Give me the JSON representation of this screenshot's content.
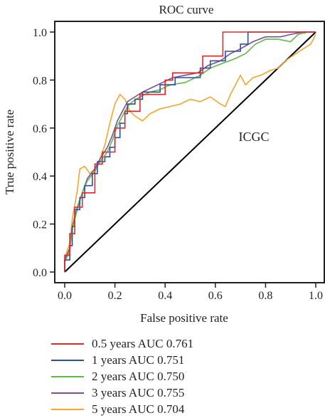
{
  "chart_data": {
    "type": "line",
    "title": "ROC curve",
    "xlabel": "False positive rate",
    "ylabel": "True positive rate",
    "xlim": [
      0,
      1.0
    ],
    "ylim": [
      0,
      1.0
    ],
    "x_ticks": [
      "0.0",
      "0.2",
      "0.4",
      "0.6",
      "0.8",
      "1.0"
    ],
    "y_ticks": [
      "0.0",
      "0.2",
      "0.4",
      "0.6",
      "0.8",
      "1.0"
    ],
    "annotation": "ICGC",
    "grid": false,
    "legend_position": "bottom",
    "diagonal_reference": true,
    "series": [
      {
        "name": "0.5 years AUC 0.761",
        "color": "#e4262a",
        "points": [
          [
            0.0,
            0.0
          ],
          [
            0.0,
            0.07
          ],
          [
            0.02,
            0.07
          ],
          [
            0.02,
            0.16
          ],
          [
            0.04,
            0.16
          ],
          [
            0.04,
            0.27
          ],
          [
            0.07,
            0.27
          ],
          [
            0.07,
            0.33
          ],
          [
            0.12,
            0.33
          ],
          [
            0.12,
            0.45
          ],
          [
            0.15,
            0.45
          ],
          [
            0.15,
            0.5
          ],
          [
            0.2,
            0.5
          ],
          [
            0.2,
            0.6
          ],
          [
            0.24,
            0.6
          ],
          [
            0.24,
            0.67
          ],
          [
            0.3,
            0.67
          ],
          [
            0.3,
            0.74
          ],
          [
            0.4,
            0.74
          ],
          [
            0.4,
            0.8
          ],
          [
            0.43,
            0.8
          ],
          [
            0.43,
            0.83
          ],
          [
            0.55,
            0.83
          ],
          [
            0.55,
            0.9
          ],
          [
            0.63,
            0.9
          ],
          [
            0.63,
            1.0
          ],
          [
            1.0,
            1.0
          ]
        ]
      },
      {
        "name": "1 years AUC 0.751",
        "color": "#2d4fa0",
        "points": [
          [
            0.0,
            0.0
          ],
          [
            0.0,
            0.05
          ],
          [
            0.02,
            0.05
          ],
          [
            0.02,
            0.11
          ],
          [
            0.03,
            0.11
          ],
          [
            0.03,
            0.19
          ],
          [
            0.04,
            0.19
          ],
          [
            0.04,
            0.26
          ],
          [
            0.06,
            0.26
          ],
          [
            0.06,
            0.31
          ],
          [
            0.08,
            0.31
          ],
          [
            0.08,
            0.36
          ],
          [
            0.11,
            0.36
          ],
          [
            0.11,
            0.41
          ],
          [
            0.13,
            0.41
          ],
          [
            0.13,
            0.46
          ],
          [
            0.16,
            0.46
          ],
          [
            0.16,
            0.48
          ],
          [
            0.18,
            0.48
          ],
          [
            0.18,
            0.52
          ],
          [
            0.2,
            0.52
          ],
          [
            0.2,
            0.56
          ],
          [
            0.22,
            0.56
          ],
          [
            0.22,
            0.62
          ],
          [
            0.24,
            0.62
          ],
          [
            0.24,
            0.66
          ],
          [
            0.25,
            0.66
          ],
          [
            0.25,
            0.7
          ],
          [
            0.28,
            0.7
          ],
          [
            0.28,
            0.72
          ],
          [
            0.31,
            0.72
          ],
          [
            0.31,
            0.75
          ],
          [
            0.38,
            0.75
          ],
          [
            0.38,
            0.78
          ],
          [
            0.44,
            0.78
          ],
          [
            0.44,
            0.81
          ],
          [
            0.54,
            0.81
          ],
          [
            0.54,
            0.85
          ],
          [
            0.58,
            0.85
          ],
          [
            0.58,
            0.88
          ],
          [
            0.64,
            0.88
          ],
          [
            0.64,
            0.92
          ],
          [
            0.7,
            0.92
          ],
          [
            0.7,
            0.95
          ],
          [
            0.73,
            0.95
          ],
          [
            0.73,
            1.0
          ],
          [
            1.0,
            1.0
          ]
        ]
      },
      {
        "name": "2 years AUC 0.750",
        "color": "#5cbd46",
        "points": [
          [
            0.0,
            0.0
          ],
          [
            0.0,
            0.04
          ],
          [
            0.02,
            0.09
          ],
          [
            0.03,
            0.18
          ],
          [
            0.05,
            0.26
          ],
          [
            0.07,
            0.33
          ],
          [
            0.09,
            0.38
          ],
          [
            0.12,
            0.42
          ],
          [
            0.14,
            0.46
          ],
          [
            0.17,
            0.5
          ],
          [
            0.19,
            0.55
          ],
          [
            0.21,
            0.61
          ],
          [
            0.23,
            0.65
          ],
          [
            0.25,
            0.69
          ],
          [
            0.27,
            0.71
          ],
          [
            0.3,
            0.73
          ],
          [
            0.34,
            0.75
          ],
          [
            0.38,
            0.76
          ],
          [
            0.42,
            0.78
          ],
          [
            0.48,
            0.79
          ],
          [
            0.54,
            0.82
          ],
          [
            0.58,
            0.85
          ],
          [
            0.63,
            0.87
          ],
          [
            0.68,
            0.89
          ],
          [
            0.72,
            0.91
          ],
          [
            0.76,
            0.95
          ],
          [
            0.8,
            0.97
          ],
          [
            0.85,
            0.97
          ],
          [
            0.9,
            0.96
          ],
          [
            0.93,
            0.99
          ],
          [
            0.97,
            1.0
          ],
          [
            1.0,
            1.0
          ]
        ]
      },
      {
        "name": "3 years AUC 0.755",
        "color": "#7c4d9e",
        "points": [
          [
            0.0,
            0.0
          ],
          [
            0.0,
            0.05
          ],
          [
            0.02,
            0.1
          ],
          [
            0.03,
            0.19
          ],
          [
            0.05,
            0.27
          ],
          [
            0.07,
            0.33
          ],
          [
            0.09,
            0.39
          ],
          [
            0.12,
            0.43
          ],
          [
            0.14,
            0.47
          ],
          [
            0.17,
            0.52
          ],
          [
            0.19,
            0.57
          ],
          [
            0.21,
            0.63
          ],
          [
            0.23,
            0.67
          ],
          [
            0.25,
            0.71
          ],
          [
            0.28,
            0.73
          ],
          [
            0.31,
            0.75
          ],
          [
            0.35,
            0.77
          ],
          [
            0.39,
            0.79
          ],
          [
            0.43,
            0.81
          ],
          [
            0.48,
            0.82
          ],
          [
            0.53,
            0.83
          ],
          [
            0.57,
            0.86
          ],
          [
            0.62,
            0.88
          ],
          [
            0.66,
            0.91
          ],
          [
            0.7,
            0.93
          ],
          [
            0.75,
            0.96
          ],
          [
            0.8,
            0.98
          ],
          [
            0.86,
            0.98
          ],
          [
            0.9,
            0.99
          ],
          [
            0.95,
            1.0
          ],
          [
            1.0,
            1.0
          ]
        ]
      },
      {
        "name": "5 years AUC 0.704",
        "color": "#f7a52b",
        "points": [
          [
            0.0,
            0.0
          ],
          [
            0.0,
            0.06
          ],
          [
            0.02,
            0.12
          ],
          [
            0.03,
            0.22
          ],
          [
            0.05,
            0.34
          ],
          [
            0.06,
            0.43
          ],
          [
            0.08,
            0.44
          ],
          [
            0.1,
            0.41
          ],
          [
            0.12,
            0.43
          ],
          [
            0.14,
            0.47
          ],
          [
            0.16,
            0.53
          ],
          [
            0.18,
            0.62
          ],
          [
            0.2,
            0.7
          ],
          [
            0.22,
            0.74
          ],
          [
            0.24,
            0.72
          ],
          [
            0.26,
            0.67
          ],
          [
            0.28,
            0.65
          ],
          [
            0.31,
            0.63
          ],
          [
            0.34,
            0.66
          ],
          [
            0.38,
            0.68
          ],
          [
            0.42,
            0.69
          ],
          [
            0.46,
            0.7
          ],
          [
            0.5,
            0.72
          ],
          [
            0.54,
            0.71
          ],
          [
            0.58,
            0.73
          ],
          [
            0.62,
            0.7
          ],
          [
            0.64,
            0.69
          ],
          [
            0.66,
            0.74
          ],
          [
            0.68,
            0.78
          ],
          [
            0.7,
            0.82
          ],
          [
            0.72,
            0.78
          ],
          [
            0.75,
            0.81
          ],
          [
            0.78,
            0.82
          ],
          [
            0.82,
            0.84
          ],
          [
            0.85,
            0.85
          ],
          [
            0.88,
            0.88
          ],
          [
            0.92,
            0.91
          ],
          [
            0.95,
            0.93
          ],
          [
            0.98,
            0.95
          ],
          [
            1.0,
            0.99
          ]
        ]
      }
    ]
  }
}
